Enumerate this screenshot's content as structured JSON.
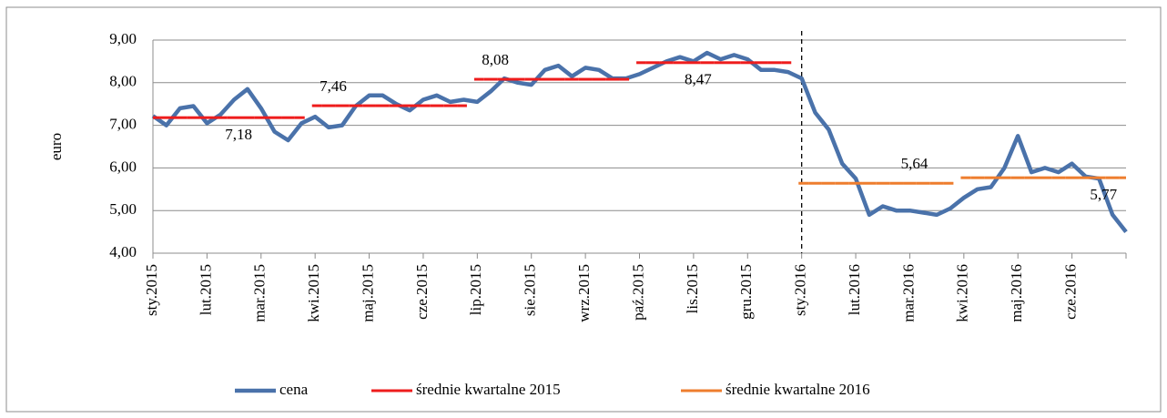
{
  "chart_data": {
    "type": "line",
    "y_label": "euro",
    "categories": [
      "sty.2015",
      null,
      null,
      null,
      "lut.2015",
      null,
      null,
      null,
      "mar.2015",
      null,
      null,
      null,
      "kwi.2015",
      null,
      null,
      null,
      "maj.2015",
      null,
      null,
      null,
      "cze.2015",
      null,
      null,
      null,
      "lip.2015",
      null,
      null,
      null,
      "sie.2015",
      null,
      null,
      null,
      "wrz.2015",
      null,
      null,
      null,
      "paź.2015",
      null,
      null,
      null,
      "lis.2015",
      null,
      null,
      null,
      "gru.2015",
      null,
      null,
      null,
      "sty.2016",
      null,
      null,
      null,
      "lut.2016",
      null,
      null,
      null,
      "mar.2016",
      null,
      null,
      null,
      "kwi.2016",
      null,
      null,
      null,
      "maj.2016",
      null,
      null,
      null,
      "cze.2016",
      null,
      null,
      null,
      null
    ],
    "series": [
      {
        "name": "cena",
        "color": "#4a72aa",
        "values": [
          7.22,
          7.0,
          7.4,
          7.45,
          7.05,
          7.25,
          7.6,
          7.85,
          7.4,
          6.85,
          6.65,
          7.05,
          7.2,
          6.95,
          7.0,
          7.45,
          7.7,
          7.7,
          7.5,
          7.35,
          7.6,
          7.7,
          7.55,
          7.6,
          7.55,
          7.8,
          8.1,
          8.0,
          7.95,
          8.3,
          8.4,
          8.15,
          8.35,
          8.3,
          8.1,
          8.1,
          8.2,
          8.35,
          8.5,
          8.6,
          8.5,
          8.7,
          8.55,
          8.65,
          8.55,
          8.3,
          8.3,
          8.25,
          8.1,
          7.3,
          6.9,
          6.1,
          5.75,
          4.9,
          5.1,
          5.0,
          5.0,
          4.95,
          4.9,
          5.05,
          5.3,
          5.5,
          5.55,
          6.0,
          6.75,
          5.9,
          6.0,
          5.9,
          6.1,
          5.8,
          5.75,
          4.9,
          4.5
        ]
      },
      {
        "name": "średnie kwartalne 2015",
        "color": "#ee1c1c",
        "values": [
          7.18,
          7.18,
          7.18,
          7.18,
          7.18,
          7.18,
          7.18,
          7.18,
          7.18,
          7.18,
          7.18,
          7.18,
          7.46,
          7.46,
          7.46,
          7.46,
          7.46,
          7.46,
          7.46,
          7.46,
          7.46,
          7.46,
          7.46,
          7.46,
          8.08,
          8.08,
          8.08,
          8.08,
          8.08,
          8.08,
          8.08,
          8.08,
          8.08,
          8.08,
          8.08,
          8.08,
          8.47,
          8.47,
          8.47,
          8.47,
          8.47,
          8.47,
          8.47,
          8.47,
          8.47,
          8.47,
          8.47,
          8.47,
          null,
          null,
          null,
          null,
          null,
          null,
          null,
          null,
          null,
          null,
          null,
          null,
          null,
          null,
          null,
          null,
          null,
          null,
          null,
          null,
          null,
          null,
          null,
          null,
          null
        ],
        "value_labels": [
          null,
          null,
          null,
          null,
          null,
          null,
          "7,18",
          null,
          null,
          null,
          null,
          null,
          null,
          "7,46",
          null,
          null,
          null,
          null,
          null,
          null,
          null,
          null,
          null,
          null,
          null,
          "8,08",
          null,
          null,
          null,
          null,
          null,
          null,
          null,
          null,
          null,
          null,
          null,
          null,
          null,
          null,
          "8,47",
          null,
          null,
          null,
          null,
          null,
          null,
          null,
          null,
          null,
          null,
          null,
          null,
          null,
          null,
          null,
          null,
          null,
          null,
          null,
          null,
          null,
          null,
          null,
          null,
          null,
          null,
          null,
          null,
          null,
          null,
          null,
          null
        ]
      },
      {
        "name": "średnie kwartalne 2016",
        "color": "#ee7d2e",
        "values": [
          null,
          null,
          null,
          null,
          null,
          null,
          null,
          null,
          null,
          null,
          null,
          null,
          null,
          null,
          null,
          null,
          null,
          null,
          null,
          null,
          null,
          null,
          null,
          null,
          null,
          null,
          null,
          null,
          null,
          null,
          null,
          null,
          null,
          null,
          null,
          null,
          null,
          null,
          null,
          null,
          null,
          null,
          null,
          null,
          null,
          null,
          null,
          null,
          5.64,
          5.64,
          5.64,
          5.64,
          5.64,
          5.64,
          5.64,
          5.64,
          5.64,
          5.64,
          5.64,
          5.64,
          5.77,
          5.77,
          5.77,
          5.77,
          5.77,
          5.77,
          5.77,
          5.77,
          5.77,
          5.77,
          5.77,
          5.77,
          5.77
        ],
        "value_labels": [
          null,
          null,
          null,
          null,
          null,
          null,
          null,
          null,
          null,
          null,
          null,
          null,
          null,
          null,
          null,
          null,
          null,
          null,
          null,
          null,
          null,
          null,
          null,
          null,
          null,
          null,
          null,
          null,
          null,
          null,
          null,
          null,
          null,
          null,
          null,
          null,
          null,
          null,
          null,
          null,
          null,
          null,
          null,
          null,
          null,
          null,
          null,
          null,
          null,
          null,
          null,
          null,
          null,
          null,
          null,
          null,
          "5,64",
          null,
          null,
          null,
          null,
          null,
          null,
          null,
          null,
          null,
          null,
          null,
          null,
          null,
          "5,77",
          null,
          null
        ]
      }
    ],
    "ylim": [
      4,
      9
    ],
    "yticks": [
      {
        "value": 4,
        "label": "4,00"
      },
      {
        "value": 5,
        "label": "5,00"
      },
      {
        "value": 6,
        "label": "6,00"
      },
      {
        "value": 7,
        "label": "7,00"
      },
      {
        "value": 8,
        "label": "8,00"
      },
      {
        "value": 9,
        "label": "9,00"
      }
    ],
    "grid": true,
    "legend": "bottom"
  }
}
